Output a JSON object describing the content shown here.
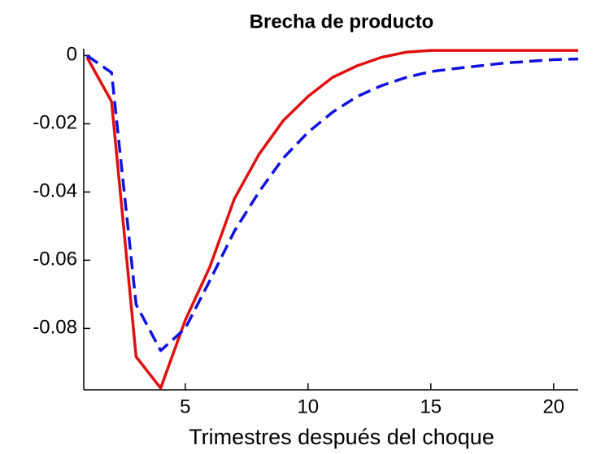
{
  "chart_data": {
    "type": "line",
    "title": "Brecha de producto",
    "xlabel": "Trimestres después del choque",
    "x": [
      1,
      2,
      3,
      4,
      5,
      6,
      7,
      8,
      9,
      10,
      11,
      12,
      13,
      14,
      15,
      16,
      17,
      18,
      19,
      20,
      21
    ],
    "series": [
      {
        "color": "#e01010",
        "dash": "solid",
        "values": [
          -0.0005,
          -0.0135,
          -0.0883,
          -0.0975,
          -0.0776,
          -0.062,
          -0.042,
          -0.029,
          -0.019,
          -0.012,
          -0.0064,
          -0.003,
          -0.0005,
          0.001,
          0.0015,
          0.0015,
          0.0015,
          0.0015,
          0.0015,
          0.0015,
          0.0015
        ]
      },
      {
        "color": "#1010e0",
        "dash": "dashed",
        "values": [
          0,
          -0.005,
          -0.073,
          -0.0865,
          -0.08,
          -0.066,
          -0.0515,
          -0.04,
          -0.03,
          -0.0225,
          -0.0166,
          -0.012,
          -0.0088,
          -0.0064,
          -0.0047,
          -0.0038,
          -0.003,
          -0.0022,
          -0.0017,
          -0.0012,
          -0.001
        ]
      }
    ],
    "xlim": [
      1,
      21
    ],
    "xticks": [
      5,
      10,
      15,
      20
    ],
    "ylim": [
      -0.098,
      0.002
    ],
    "yticks": [
      0,
      -0.02,
      -0.04,
      -0.06,
      -0.08
    ],
    "grid": false
  }
}
